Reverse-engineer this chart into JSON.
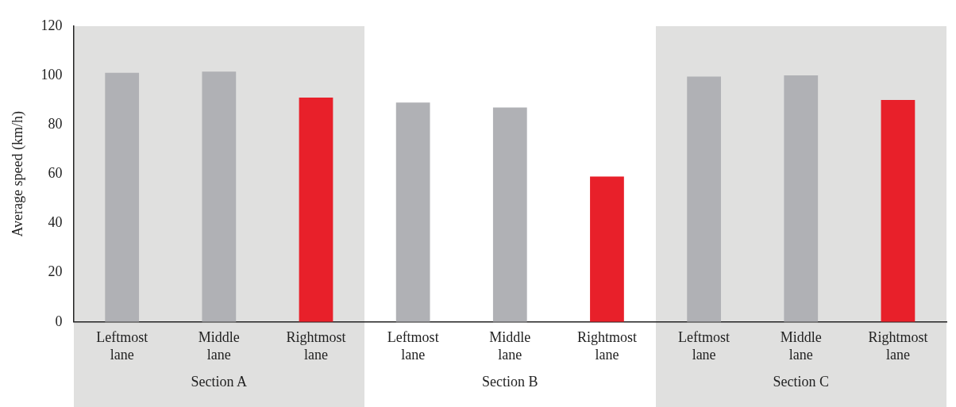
{
  "chart_data": {
    "type": "bar",
    "ylabel": "Average speed (km/h)",
    "categories": [
      "Leftmost lane",
      "Middle lane",
      "Rightmost lane",
      "Leftmost lane",
      "Middle lane",
      "Rightmost lane",
      "Leftmost lane",
      "Middle lane",
      "Rightmost lane"
    ],
    "values": [
      101,
      101.5,
      91,
      89,
      87,
      59,
      99.5,
      100,
      90
    ],
    "colors": [
      "#b0b1b5",
      "#b0b1b5",
      "#e8202a",
      "#b0b1b5",
      "#b0b1b5",
      "#e8202a",
      "#b0b1b5",
      "#b0b1b5",
      "#e8202a"
    ],
    "ylim": [
      0,
      120
    ],
    "yticks": [
      0,
      20,
      40,
      60,
      80,
      100,
      120
    ],
    "grid": false,
    "legend": false,
    "annotations": [
      "Section A",
      "Section B",
      "Section C"
    ]
  }
}
